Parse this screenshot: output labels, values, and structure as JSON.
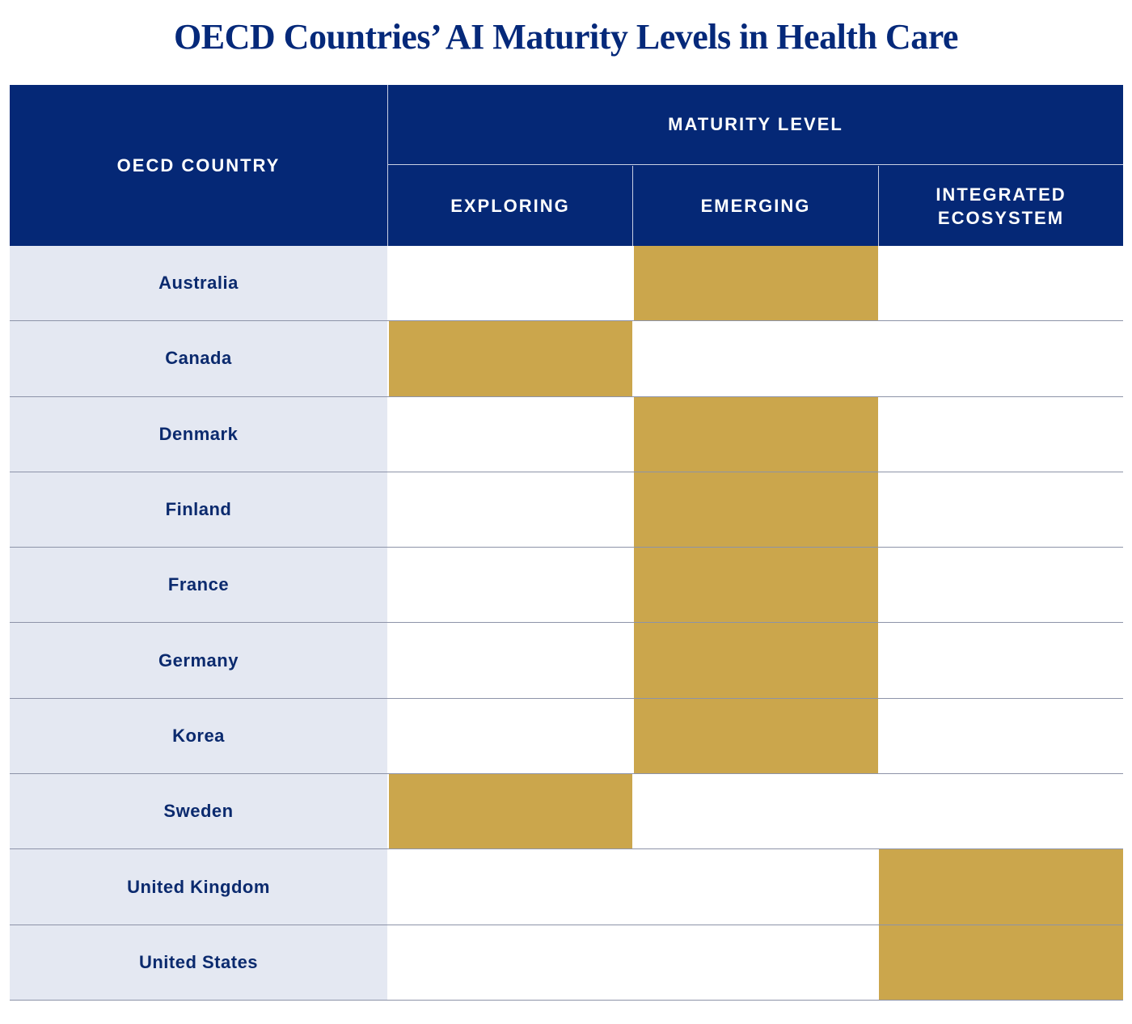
{
  "title": "OECD Countries’ AI Maturity Levels in Health Care",
  "colors": {
    "header_bg": "#052876",
    "country_bg": "#e4e8f2",
    "filled_cell": "#cba64c",
    "text_dark_blue": "#0b2a6e"
  },
  "table": {
    "country_header": "OECD COUNTRY",
    "maturity_header": "MATURITY LEVEL",
    "levels": [
      "EXPLORING",
      "EMERGING",
      "INTEGRATED\nECOSYSTEM"
    ],
    "rows": [
      {
        "country": "Australia",
        "level": "EMERGING"
      },
      {
        "country": "Canada",
        "level": "EXPLORING"
      },
      {
        "country": "Denmark",
        "level": "EMERGING"
      },
      {
        "country": "Finland",
        "level": "EMERGING"
      },
      {
        "country": "France",
        "level": "EMERGING"
      },
      {
        "country": "Germany",
        "level": "EMERGING"
      },
      {
        "country": "Korea",
        "level": "EMERGING"
      },
      {
        "country": "Sweden",
        "level": "EXPLORING"
      },
      {
        "country": "United Kingdom",
        "level": "INTEGRATED ECOSYSTEM"
      },
      {
        "country": "United States",
        "level": "INTEGRATED ECOSYSTEM"
      }
    ]
  }
}
